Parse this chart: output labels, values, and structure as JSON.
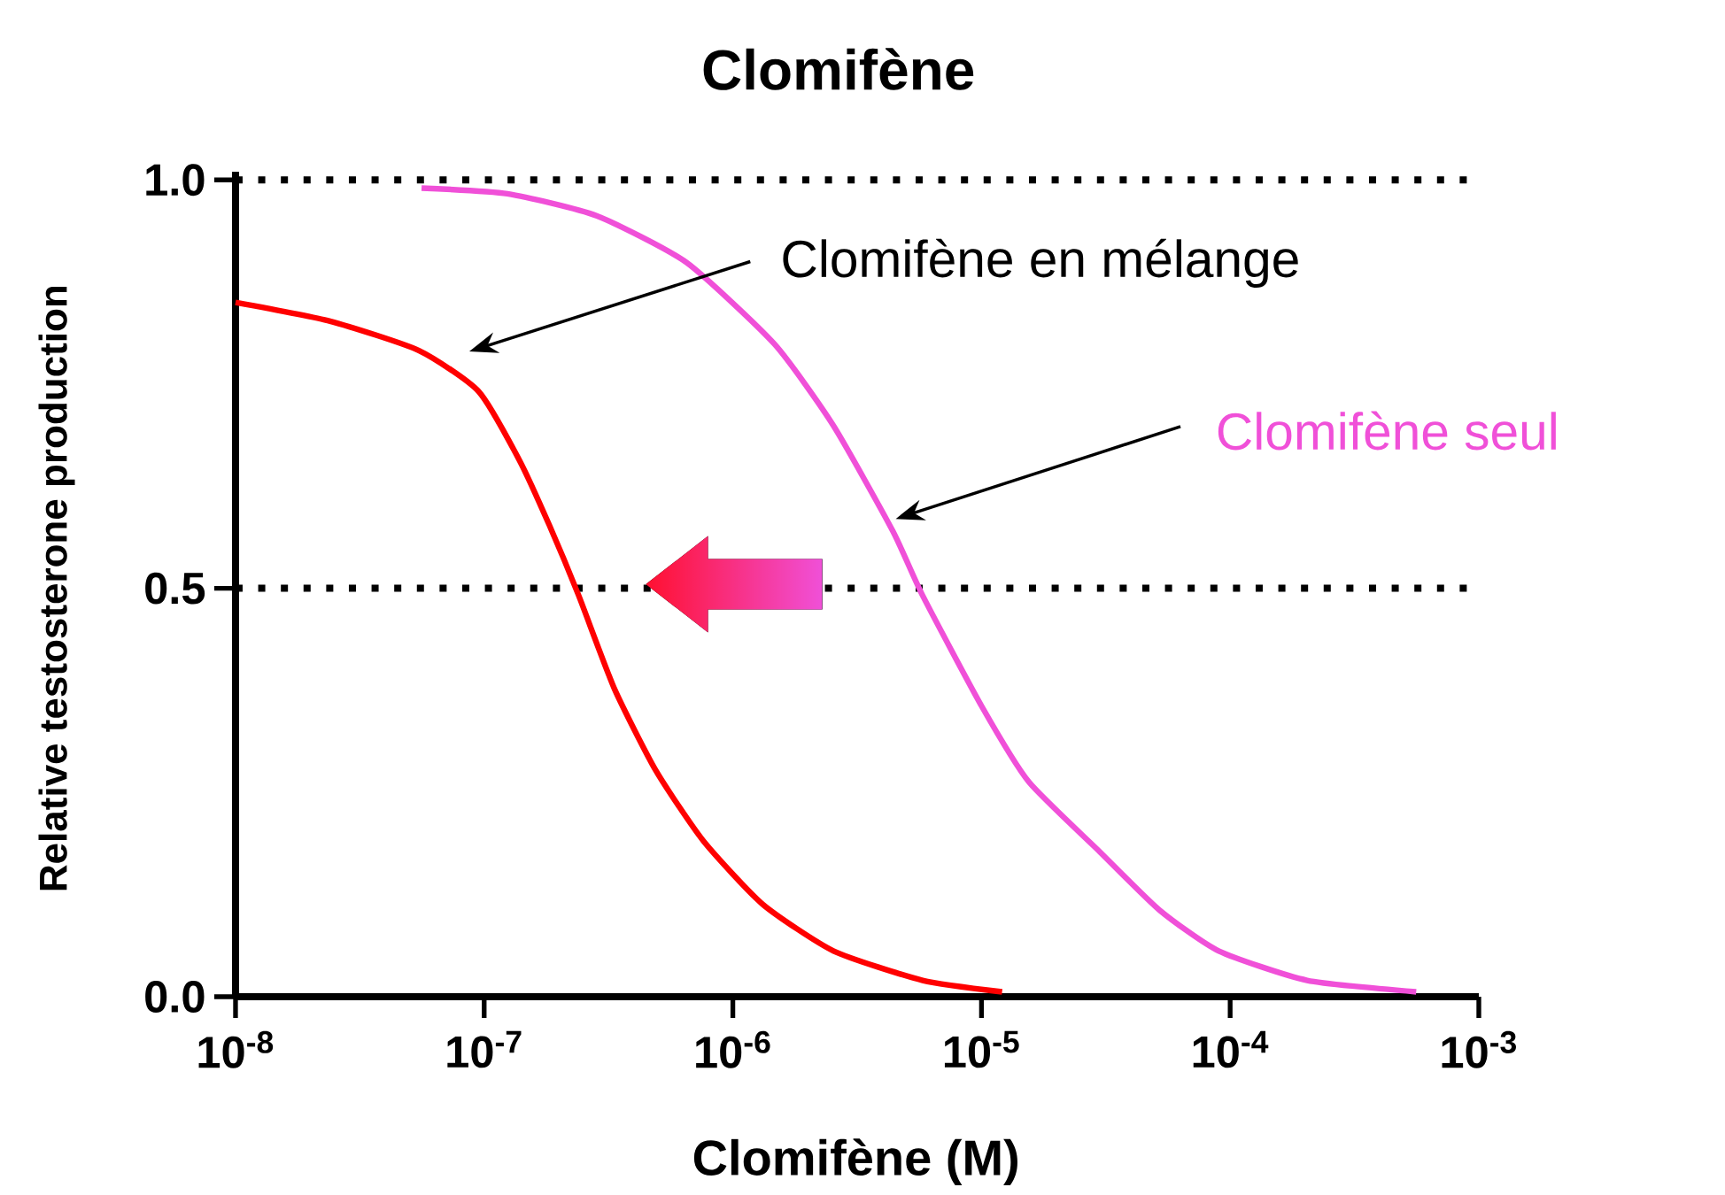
{
  "chart_data": {
    "type": "line",
    "title": "Clomifène",
    "xlabel": "Clomifène (M)",
    "ylabel": "Relative testosterone production",
    "log": "x",
    "xlim": [
      1e-08,
      0.001
    ],
    "ylim": [
      0,
      1.01
    ],
    "xticks": [
      {
        "value": 1e-08,
        "label": "10$^{-8}$"
      },
      {
        "value": 1e-07,
        "label": "10$^{-7}$"
      },
      {
        "value": 1e-06,
        "label": "10$^{-6}$"
      },
      {
        "value": 1e-05,
        "label": "10$^{-5}$"
      },
      {
        "value": 0.0001,
        "label": "10$^{-4}$"
      },
      {
        "value": 0.001,
        "label": "10$^{-3}$"
      }
    ],
    "yticks": [
      {
        "value": 0,
        "label": "0.0"
      },
      {
        "value": 0.5,
        "label": "0.5"
      },
      {
        "value": 1,
        "label": "1.0"
      }
    ],
    "marker": "none",
    "ref_lines": [
      {
        "axis": "y",
        "value": 1,
        "line_style": "dotted",
        "color": "#000000"
      },
      {
        "axis": "y",
        "value": 0.5,
        "line_style": "dotted",
        "color": "#000000"
      }
    ],
    "series": [
      {
        "name": "Clomifène en mélange",
        "color": "#ff0000",
        "x": [
          1e-08,
          2.4e-08,
          5.47e-08,
          9.5e-08,
          1.39e-07,
          1.83e-07,
          2.4e-07,
          3.34e-07,
          4.9e-07,
          7.6e-07,
          1.32e-06,
          2.54e-06,
          5.8e-06,
          1.21e-05
        ],
        "values": [
          0.85,
          0.827,
          0.791,
          0.741,
          0.656,
          0.577,
          0.491,
          0.377,
          0.277,
          0.191,
          0.113,
          0.056,
          0.02,
          0.006
        ]
      },
      {
        "name": "Clomifène seul",
        "color": "#f050d8",
        "x": [
          5.6e-08,
          1.24e-07,
          2.83e-07,
          6.5e-07,
          1.47e-06,
          2.54e-06,
          4.4e-06,
          5.8e-06,
          1e-05,
          1.55e-05,
          3e-05,
          5.2e-05,
          9e-05,
          0.000204,
          0.00056
        ],
        "values": [
          0.99,
          0.983,
          0.956,
          0.899,
          0.799,
          0.699,
          0.57,
          0.491,
          0.356,
          0.263,
          0.177,
          0.106,
          0.056,
          0.02,
          0.006
        ]
      }
    ]
  }
}
